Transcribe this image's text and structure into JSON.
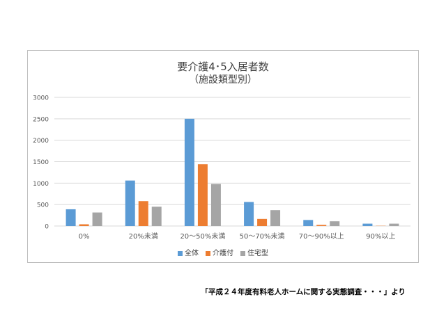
{
  "chart_data": {
    "type": "bar",
    "title": "要介護4･5入居者数",
    "subtitle": "（施設類型別）",
    "xlabel": "",
    "ylabel": "",
    "categories": [
      "0%",
      "20%未満",
      "20～50%未満",
      "50～70%未満",
      "70～90%以上",
      "90%以上"
    ],
    "series": [
      {
        "name": "全体",
        "color": "#5b9bd5",
        "values": [
          390,
          1060,
          2500,
          560,
          140,
          55
        ]
      },
      {
        "name": "介護付",
        "color": "#ed7d31",
        "values": [
          40,
          580,
          1440,
          165,
          25,
          5
        ]
      },
      {
        "name": "住宅型",
        "color": "#a5a5a5",
        "values": [
          315,
          450,
          980,
          370,
          110,
          55
        ]
      }
    ],
    "ylim": [
      0,
      3000
    ],
    "yticks": [
      0,
      500,
      1000,
      1500,
      2000,
      2500,
      3000
    ],
    "grid": true,
    "legend_position": "bottom"
  },
  "source_note": "「平成２４年度有料老人ホームに関する実態調査・・・」より"
}
